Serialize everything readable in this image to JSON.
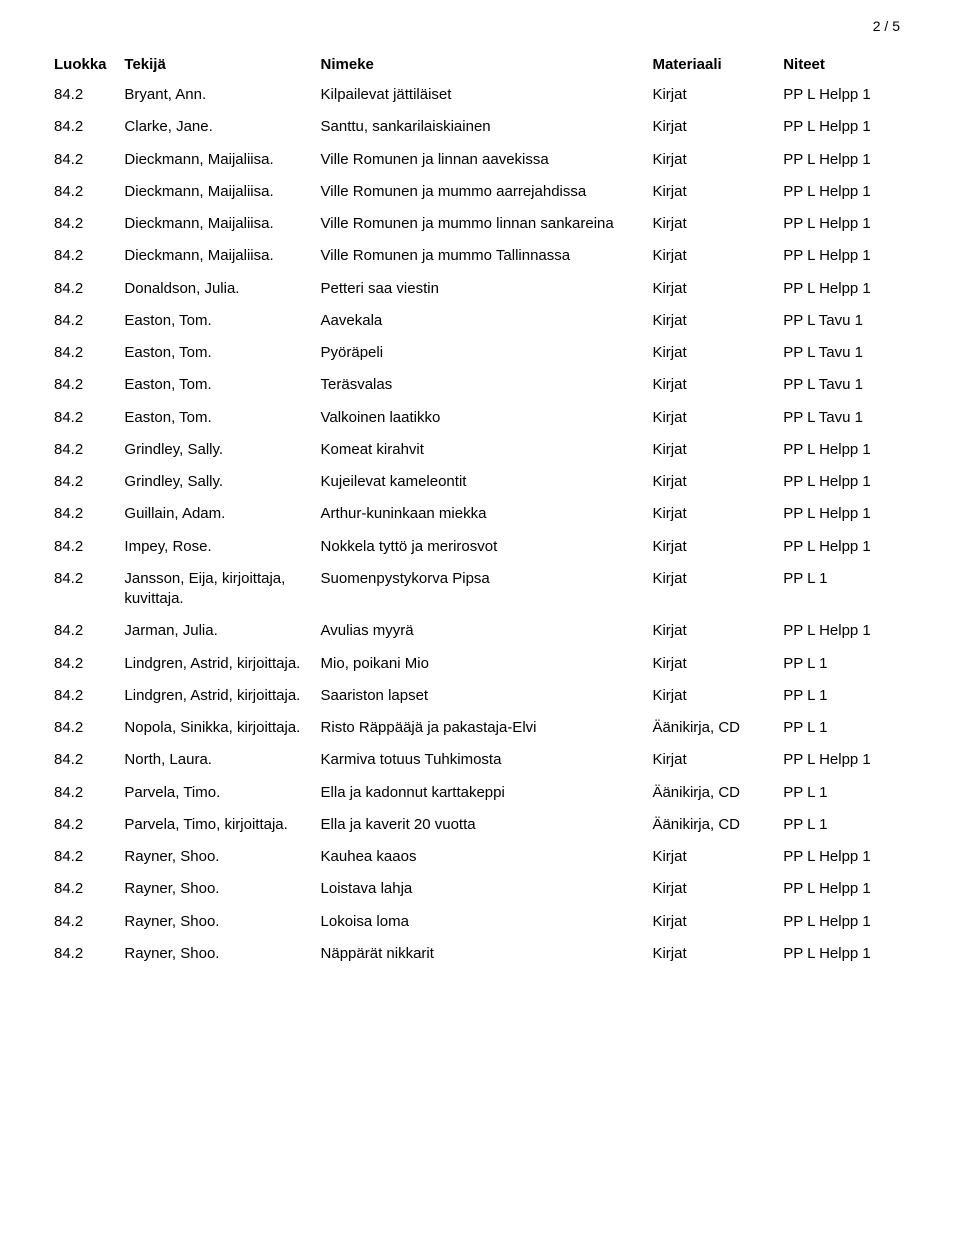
{
  "page_number": "2 / 5",
  "headers": {
    "luokka": "Luokka",
    "tekija": "Tekijä",
    "nimeke": "Nimeke",
    "materiaali": "Materiaali",
    "niteet": "Niteet"
  },
  "rows": [
    {
      "luokka": "84.2",
      "tekija": "Bryant, Ann.",
      "nimeke": "Kilpailevat jättiläiset",
      "materiaali": "Kirjat",
      "niteet": "PP L Helpp 1"
    },
    {
      "luokka": "84.2",
      "tekija": "Clarke, Jane.",
      "nimeke": "Santtu, sankarilaiskiainen",
      "materiaali": "Kirjat",
      "niteet": "PP L Helpp 1"
    },
    {
      "luokka": "84.2",
      "tekija": "Dieckmann, Maijaliisa.",
      "nimeke": "Ville Romunen ja linnan aavekissa",
      "materiaali": "Kirjat",
      "niteet": "PP L Helpp 1"
    },
    {
      "luokka": "84.2",
      "tekija": "Dieckmann, Maijaliisa.",
      "nimeke": "Ville Romunen ja mummo aarrejahdissa",
      "materiaali": "Kirjat",
      "niteet": "PP L Helpp 1"
    },
    {
      "luokka": "84.2",
      "tekija": "Dieckmann, Maijaliisa.",
      "nimeke": "Ville Romunen ja mummo linnan sankareina",
      "materiaali": "Kirjat",
      "niteet": "PP L Helpp 1"
    },
    {
      "luokka": "84.2",
      "tekija": "Dieckmann, Maijaliisa.",
      "nimeke": "Ville Romunen ja mummo Tallinnassa",
      "materiaali": "Kirjat",
      "niteet": "PP L Helpp 1"
    },
    {
      "luokka": "84.2",
      "tekija": "Donaldson, Julia.",
      "nimeke": "Petteri saa viestin",
      "materiaali": "Kirjat",
      "niteet": "PP L Helpp 1"
    },
    {
      "luokka": "84.2",
      "tekija": "Easton, Tom.",
      "nimeke": "Aavekala",
      "materiaali": "Kirjat",
      "niteet": "PP L Tavu 1"
    },
    {
      "luokka": "84.2",
      "tekija": "Easton, Tom.",
      "nimeke": "Pyöräpeli",
      "materiaali": "Kirjat",
      "niteet": "PP L Tavu 1"
    },
    {
      "luokka": "84.2",
      "tekija": "Easton, Tom.",
      "nimeke": "Teräsvalas",
      "materiaali": "Kirjat",
      "niteet": "PP L Tavu 1"
    },
    {
      "luokka": "84.2",
      "tekija": "Easton, Tom.",
      "nimeke": "Valkoinen laatikko",
      "materiaali": "Kirjat",
      "niteet": "PP L Tavu 1"
    },
    {
      "luokka": "84.2",
      "tekija": "Grindley, Sally.",
      "nimeke": "Komeat kirahvit",
      "materiaali": "Kirjat",
      "niteet": "PP L Helpp 1"
    },
    {
      "luokka": "84.2",
      "tekija": "Grindley, Sally.",
      "nimeke": "Kujeilevat kameleontit",
      "materiaali": "Kirjat",
      "niteet": "PP L Helpp 1"
    },
    {
      "luokka": "84.2",
      "tekija": "Guillain, Adam.",
      "nimeke": "Arthur-kuninkaan miekka",
      "materiaali": "Kirjat",
      "niteet": "PP L Helpp 1"
    },
    {
      "luokka": "84.2",
      "tekija": "Impey, Rose.",
      "nimeke": "Nokkela tyttö ja merirosvot",
      "materiaali": "Kirjat",
      "niteet": "PP L Helpp 1"
    },
    {
      "luokka": "84.2",
      "tekija": "Jansson, Eija, kirjoittaja, kuvittaja.",
      "nimeke": "Suomenpystykorva Pipsa",
      "materiaali": "Kirjat",
      "niteet": "PP L 1"
    },
    {
      "luokka": "84.2",
      "tekija": "Jarman, Julia.",
      "nimeke": "Avulias myyrä",
      "materiaali": "Kirjat",
      "niteet": "PP L Helpp 1"
    },
    {
      "luokka": "84.2",
      "tekija": "Lindgren, Astrid, kirjoittaja.",
      "nimeke": "Mio, poikani Mio",
      "materiaali": "Kirjat",
      "niteet": "PP L 1"
    },
    {
      "luokka": "84.2",
      "tekija": "Lindgren, Astrid, kirjoittaja.",
      "nimeke": "Saariston lapset",
      "materiaali": "Kirjat",
      "niteet": "PP L 1"
    },
    {
      "luokka": "84.2",
      "tekija": "Nopola, Sinikka, kirjoittaja.",
      "nimeke": "Risto Räppääjä ja pakastaja-Elvi",
      "materiaali": "Äänikirja, CD",
      "niteet": "PP L 1"
    },
    {
      "luokka": "84.2",
      "tekija": "North, Laura.",
      "nimeke": "Karmiva totuus Tuhkimosta",
      "materiaali": "Kirjat",
      "niteet": "PP L Helpp 1"
    },
    {
      "luokka": "84.2",
      "tekija": "Parvela, Timo.",
      "nimeke": "Ella ja kadonnut karttakeppi",
      "materiaali": "Äänikirja, CD",
      "niteet": "PP L 1"
    },
    {
      "luokka": "84.2",
      "tekija": "Parvela, Timo, kirjoittaja.",
      "nimeke": "Ella ja kaverit 20 vuotta",
      "materiaali": "Äänikirja, CD",
      "niteet": "PP L 1"
    },
    {
      "luokka": "84.2",
      "tekija": "Rayner, Shoo.",
      "nimeke": "Kauhea kaaos",
      "materiaali": "Kirjat",
      "niteet": "PP L Helpp 1"
    },
    {
      "luokka": "84.2",
      "tekija": "Rayner, Shoo.",
      "nimeke": "Loistava lahja",
      "materiaali": "Kirjat",
      "niteet": "PP L Helpp 1"
    },
    {
      "luokka": "84.2",
      "tekija": "Rayner, Shoo.",
      "nimeke": "Lokoisa loma",
      "materiaali": "Kirjat",
      "niteet": "PP L Helpp 1"
    },
    {
      "luokka": "84.2",
      "tekija": "Rayner, Shoo.",
      "nimeke": "Näppärät nikkarit",
      "materiaali": "Kirjat",
      "niteet": "PP L Helpp 1"
    }
  ]
}
